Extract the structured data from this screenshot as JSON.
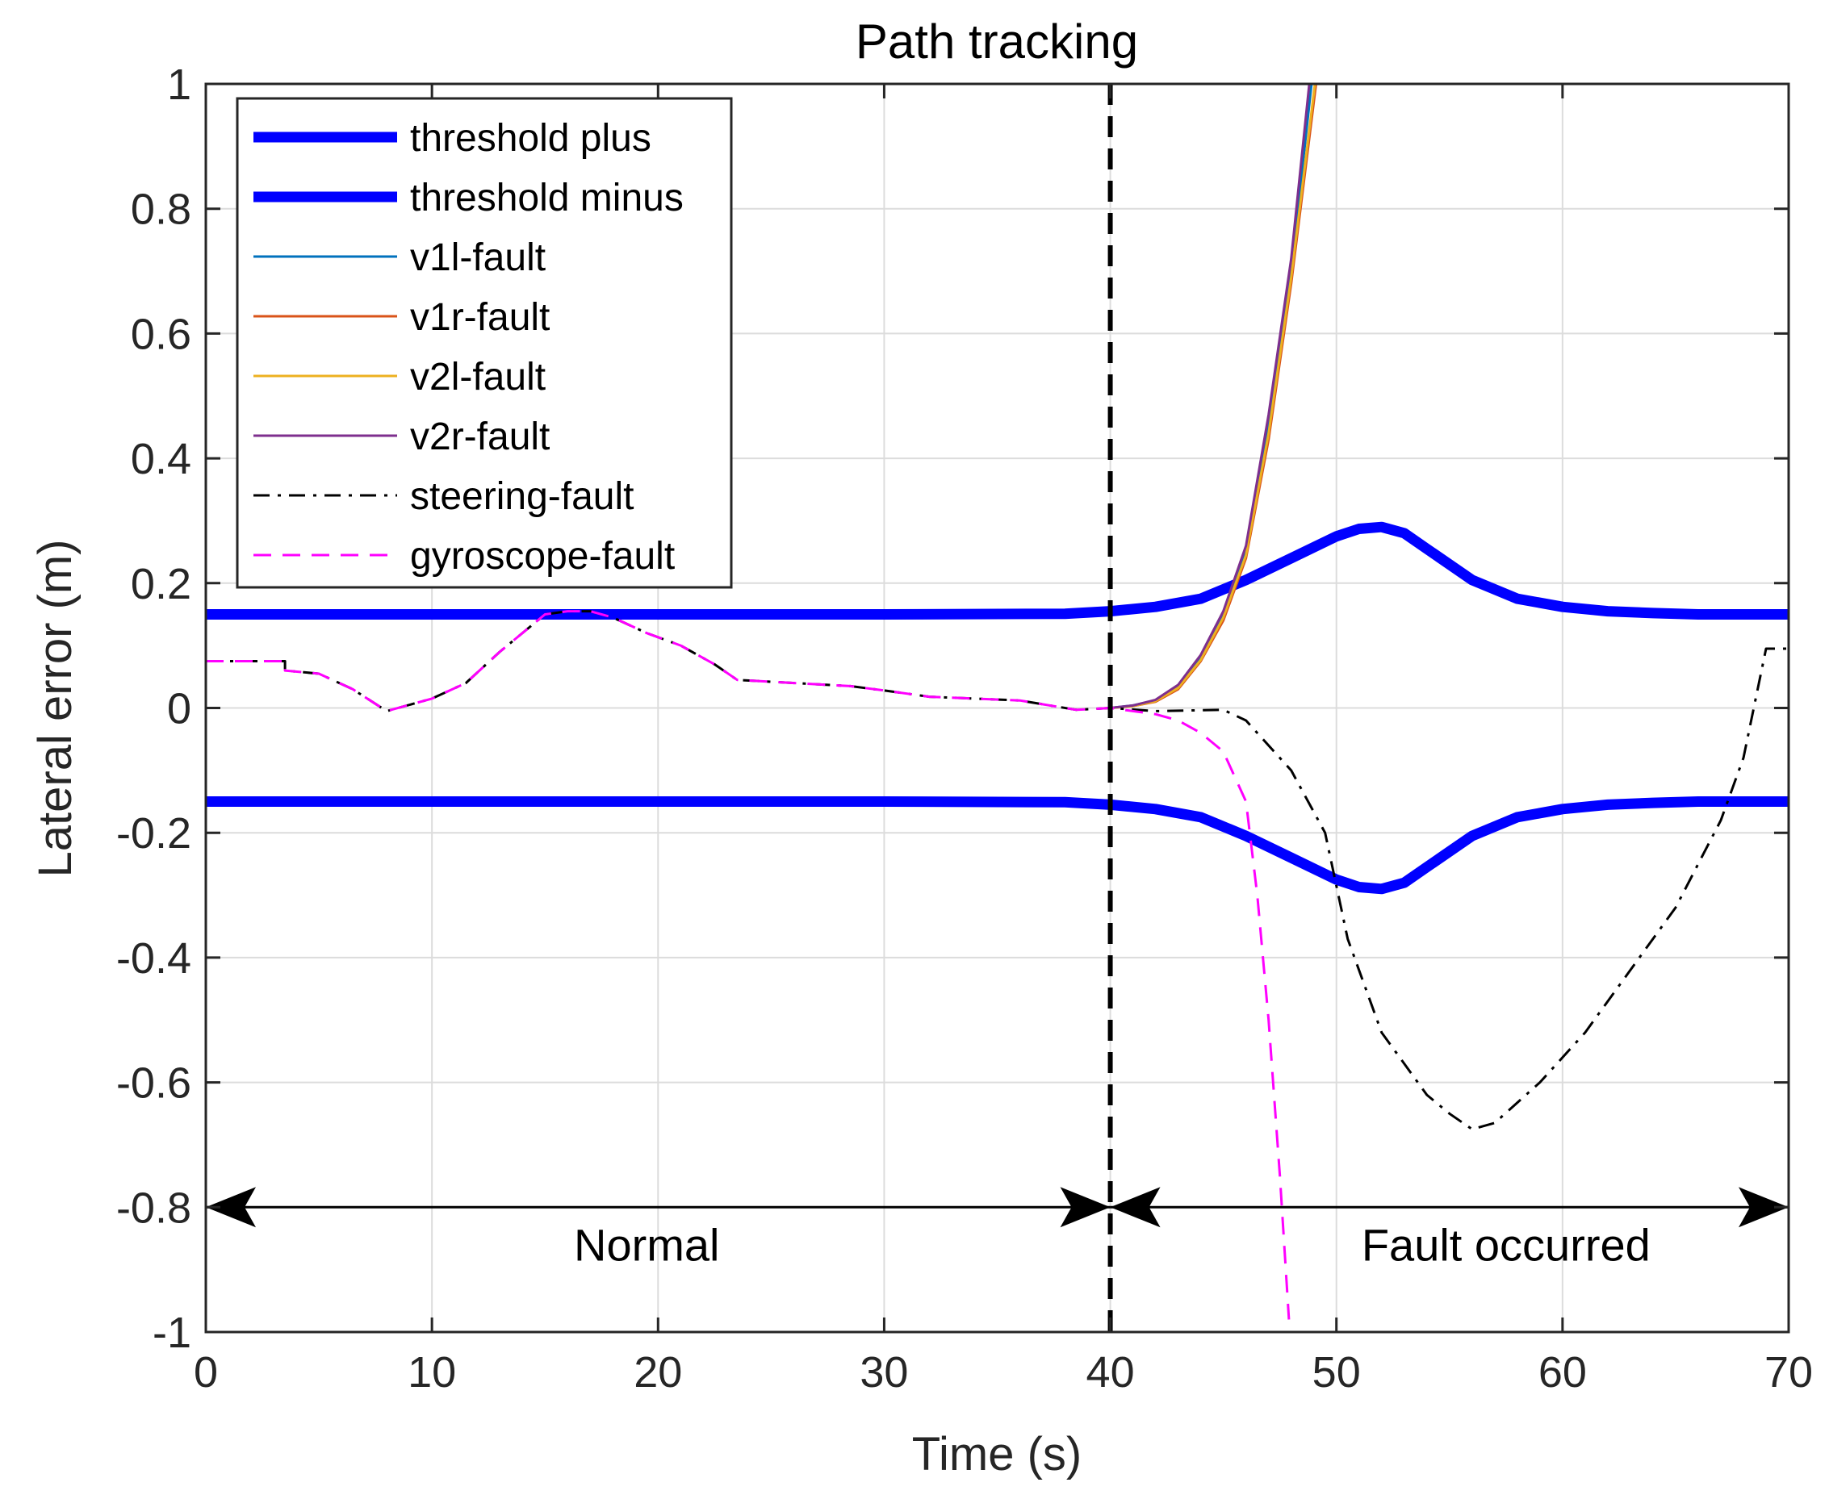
{
  "chart_data": {
    "type": "line",
    "title": "Path tracking",
    "xlabel": "Time (s)",
    "ylabel": "Lateral error (m)",
    "xlim": [
      0,
      70
    ],
    "ylim": [
      -1,
      1
    ],
    "xticks": [
      0,
      10,
      20,
      30,
      40,
      50,
      60,
      70
    ],
    "xtick_labels": [
      "0",
      "10",
      "20",
      "30",
      "40",
      "50",
      "60",
      "70"
    ],
    "yticks": [
      -1,
      -0.8,
      -0.6,
      -0.4,
      -0.2,
      0,
      0.2,
      0.4,
      0.6,
      0.8,
      1
    ],
    "ytick_labels": [
      "-1",
      "-0.8",
      "-0.6",
      "-0.4",
      "-0.2",
      "0",
      "0.2",
      "0.4",
      "0.6",
      "0.8",
      "1"
    ],
    "grid": true,
    "legend_position": "top-left",
    "series": [
      {
        "name": "threshold plus",
        "color": "#0000ff",
        "style": "solid",
        "weight": "thick",
        "x": [
          0,
          10,
          20,
          30,
          38,
          40,
          42,
          44,
          46,
          48,
          50,
          51,
          52,
          53,
          54,
          56,
          58,
          60,
          62,
          64,
          66,
          70
        ],
        "y": [
          0.15,
          0.15,
          0.15,
          0.15,
          0.151,
          0.155,
          0.162,
          0.175,
          0.205,
          0.24,
          0.275,
          0.287,
          0.29,
          0.28,
          0.255,
          0.205,
          0.175,
          0.162,
          0.155,
          0.152,
          0.15,
          0.15
        ]
      },
      {
        "name": "threshold minus",
        "color": "#0000ff",
        "style": "solid",
        "weight": "thick",
        "x": [
          0,
          10,
          20,
          30,
          38,
          40,
          42,
          44,
          46,
          48,
          50,
          51,
          52,
          53,
          54,
          56,
          58,
          60,
          62,
          64,
          66,
          70
        ],
        "y": [
          -0.15,
          -0.15,
          -0.15,
          -0.15,
          -0.151,
          -0.155,
          -0.162,
          -0.175,
          -0.205,
          -0.24,
          -0.275,
          -0.287,
          -0.29,
          -0.28,
          -0.255,
          -0.205,
          -0.175,
          -0.162,
          -0.155,
          -0.152,
          -0.15,
          -0.15
        ]
      },
      {
        "name": "v1l-fault",
        "color": "#0072bd",
        "style": "solid",
        "weight": "thin",
        "x": [
          40,
          41,
          42,
          43,
          44,
          45,
          46,
          47,
          48,
          48.9
        ],
        "y": [
          0,
          0.004,
          0.012,
          0.035,
          0.08,
          0.15,
          0.25,
          0.45,
          0.7,
          1.0
        ]
      },
      {
        "name": "v1r-fault",
        "color": "#d95319",
        "style": "solid",
        "weight": "thin",
        "x": [
          40,
          41,
          42,
          43,
          44,
          45,
          46,
          47,
          48,
          49.1
        ],
        "y": [
          0,
          0.003,
          0.01,
          0.03,
          0.075,
          0.14,
          0.24,
          0.43,
          0.68,
          1.0
        ]
      },
      {
        "name": "v2l-fault",
        "color": "#edb120",
        "style": "solid",
        "weight": "thin",
        "x": [
          40,
          41,
          42,
          43,
          44,
          45,
          46,
          47,
          48,
          49.05
        ],
        "y": [
          0,
          0.003,
          0.011,
          0.032,
          0.077,
          0.145,
          0.245,
          0.44,
          0.69,
          1.0
        ]
      },
      {
        "name": "v2r-fault",
        "color": "#7e2f8e",
        "style": "solid",
        "weight": "thin",
        "x": [
          40,
          41,
          42,
          43,
          44,
          45,
          46,
          47,
          48,
          48.8
        ],
        "y": [
          0,
          0.004,
          0.013,
          0.037,
          0.085,
          0.155,
          0.26,
          0.47,
          0.72,
          1.0
        ]
      },
      {
        "name": "steering-fault",
        "color": "#000000",
        "style": "dashdot",
        "weight": "thin",
        "x": [
          0,
          3.5,
          3.5,
          5,
          6.5,
          8,
          10,
          11.5,
          13,
          15,
          16,
          17,
          18,
          19.5,
          21,
          22.5,
          23.5,
          25,
          27,
          28.5,
          30,
          32,
          34,
          36,
          37.5,
          38.5,
          40,
          42,
          45,
          46,
          48,
          49.5,
          50.5,
          52,
          54,
          55,
          56,
          57,
          59,
          61,
          63,
          65,
          66,
          67,
          68,
          69,
          70
        ],
        "y": [
          0.075,
          0.075,
          0.06,
          0.055,
          0.03,
          -0.005,
          0.015,
          0.04,
          0.09,
          0.15,
          0.155,
          0.155,
          0.145,
          0.12,
          0.1,
          0.07,
          0.045,
          0.042,
          0.038,
          0.035,
          0.028,
          0.018,
          0.015,
          0.012,
          0.003,
          -0.003,
          0,
          -0.005,
          -0.003,
          -0.02,
          -0.1,
          -0.2,
          -0.37,
          -0.52,
          -0.62,
          -0.65,
          -0.675,
          -0.665,
          -0.6,
          -0.52,
          -0.42,
          -0.32,
          -0.25,
          -0.18,
          -0.08,
          0.095,
          0.095
        ]
      },
      {
        "name": "gyroscope-fault",
        "color": "#ff00ff",
        "style": "dashed",
        "weight": "thin",
        "x": [
          0,
          3.5,
          3.5,
          5,
          6.5,
          8,
          10,
          11.5,
          13,
          15,
          16,
          17,
          18,
          19.5,
          21,
          22.5,
          23.5,
          25,
          27,
          28.5,
          30,
          32,
          34,
          36,
          37.5,
          38.5,
          40,
          41,
          42,
          43,
          44,
          45,
          46,
          46.5,
          47,
          47.5,
          47.9
        ],
        "y": [
          0.075,
          0.075,
          0.06,
          0.055,
          0.03,
          -0.005,
          0.015,
          0.04,
          0.09,
          0.15,
          0.155,
          0.155,
          0.145,
          0.12,
          0.1,
          0.07,
          0.045,
          0.042,
          0.038,
          0.035,
          0.028,
          0.018,
          0.015,
          0.012,
          0.003,
          -0.003,
          0,
          -0.005,
          -0.01,
          -0.02,
          -0.04,
          -0.07,
          -0.15,
          -0.3,
          -0.5,
          -0.75,
          -0.98
        ]
      }
    ],
    "annotations": [
      {
        "type": "vline",
        "x": 40,
        "style": "dashed",
        "color": "#000000"
      },
      {
        "type": "double-arrow",
        "x_start": 0,
        "x_end": 40,
        "y": -0.8,
        "label": "Normal",
        "label_x": 19.5,
        "label_y": -0.86
      },
      {
        "type": "double-arrow",
        "x_start": 40,
        "x_end": 70,
        "y": -0.8,
        "label": "Fault occurred",
        "label_x": 57.5,
        "label_y": -0.86
      }
    ]
  }
}
